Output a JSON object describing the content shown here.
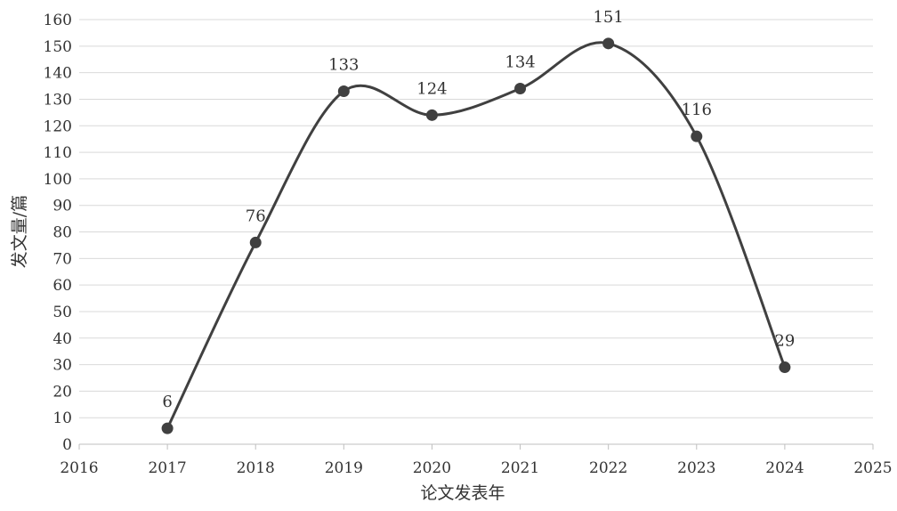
{
  "chart_data": {
    "type": "line",
    "smooth": true,
    "x": [
      2017,
      2018,
      2019,
      2020,
      2021,
      2022,
      2023,
      2024
    ],
    "values": [
      6,
      76,
      133,
      124,
      134,
      151,
      116,
      29
    ],
    "data_labels": [
      "6",
      "76",
      "133",
      "124",
      "134",
      "151",
      "116",
      "29"
    ],
    "xlabel": "论文发表年",
    "ylabel": "发文量/篇",
    "xlim": [
      2016,
      2025
    ],
    "ylim": [
      0,
      160
    ],
    "xticks": [
      "2016",
      "2017",
      "2018",
      "2019",
      "2020",
      "2021",
      "2022",
      "2023",
      "2024",
      "2025"
    ],
    "yticks": [
      "0",
      "10",
      "20",
      "30",
      "40",
      "50",
      "60",
      "70",
      "80",
      "90",
      "100",
      "110",
      "120",
      "130",
      "140",
      "150",
      "160"
    ],
    "grid": true,
    "legend": "none",
    "colors": {
      "line": "#404040",
      "marker": "#404040",
      "grid": "#d9d9d9",
      "axis": "#bfbfbf"
    }
  }
}
